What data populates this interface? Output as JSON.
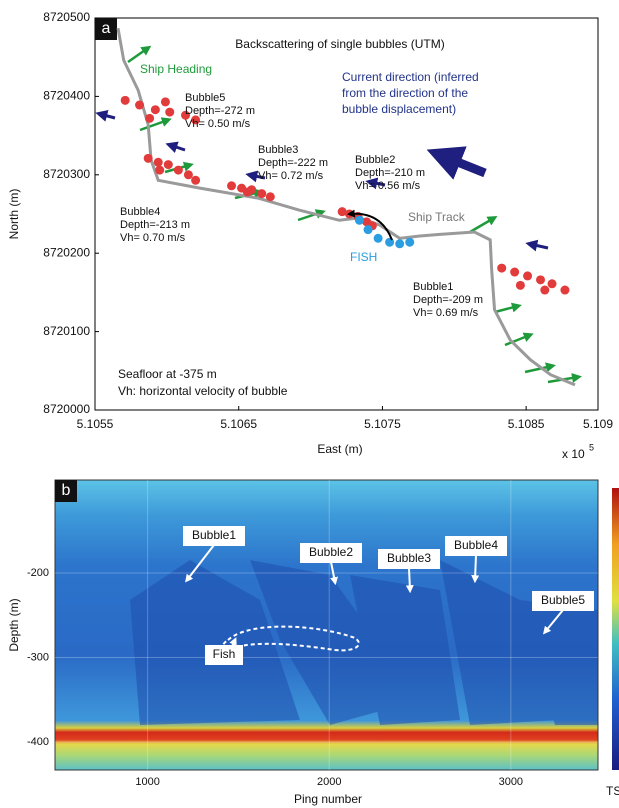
{
  "chart_data": [
    {
      "type": "map",
      "panel": "a",
      "title": "Backscattering of single bubbles (UTM)",
      "x_label": "East (m)",
      "y_label": "North (m)",
      "x_multiplier": "x 10",
      "x_multiplier_exponent": "5",
      "xlim": [
        5.1055,
        5.109
      ],
      "xticks": [
        5.1055,
        5.1065,
        5.1075,
        5.1085,
        5.109
      ],
      "ylim": [
        8720000,
        8720500
      ],
      "yticks": [
        8720000,
        8720100,
        8720200,
        8720300,
        8720400,
        8720500
      ],
      "ship_heading_label": "Ship Heading",
      "current_label": [
        "Current direction (inferred",
        "from the direction of the",
        "bubble displacement)"
      ],
      "seafloor_note": "Seafloor at -375 m",
      "vh_note": "Vh: horizontal velocity of bubble",
      "series": [
        {
          "name": "Ship Track",
          "type": "line",
          "color": "#9a9a9a",
          "x": [
            5.10566,
            5.1057,
            5.1058,
            5.10587,
            5.10589,
            5.10594,
            5.10623,
            5.10664,
            5.10692,
            5.1072,
            5.10734,
            5.10748,
            5.10762,
            5.10776,
            5.1079,
            5.10814,
            5.10825,
            5.10826,
            5.10828,
            5.10839,
            5.10853,
            5.10867,
            5.10884
          ],
          "y": [
            8720487,
            8720446,
            8720408,
            8720364,
            8720319,
            8720293,
            8720283,
            8720270,
            8720255,
            8720242,
            8720245,
            8720236,
            8720219,
            8720222,
            8720224,
            8720227,
            8720217,
            8720179,
            8720128,
            8720089,
            8720064,
            8720045,
            8720032
          ]
        },
        {
          "name": "Bubble5",
          "type": "scatter",
          "color": "#e23b3b",
          "depth_label": "Depth=-272 m",
          "velocity_label": "Vh= 0.50 m/s",
          "x": [
            5.10571,
            5.10581,
            5.10592,
            5.10602,
            5.10613,
            5.1062,
            5.10588,
            5.10599
          ],
          "y": [
            8720395,
            8720389,
            8720383,
            8720380,
            8720376,
            8720370,
            8720372,
            8720393
          ]
        },
        {
          "name": "Bubble4",
          "type": "scatter",
          "color": "#e23b3b",
          "depth_label": "Depth=-213 m",
          "velocity_label": "Vh= 0.70 m/s",
          "x": [
            5.10587,
            5.10594,
            5.10601,
            5.10608,
            5.10615,
            5.1062,
            5.10595
          ],
          "y": [
            8720321,
            8720316,
            8720313,
            8720306,
            8720300,
            8720293,
            8720306
          ]
        },
        {
          "name": "Bubble3",
          "type": "scatter",
          "color": "#e23b3b",
          "depth_label": "Depth=-222 m",
          "velocity_label": "Vh= 0.72 m/s",
          "x": [
            5.10645,
            5.10652,
            5.10659,
            5.10666,
            5.10672,
            5.10656
          ],
          "y": [
            8720286,
            8720283,
            8720281,
            8720276,
            8720272,
            8720278
          ]
        },
        {
          "name": "Bubble2",
          "type": "scatter",
          "color": "#e23b3b",
          "depth_label": "Depth=-210 m",
          "velocity_label": "Vh= 0.56 m/s",
          "x": [
            5.10722,
            5.10727,
            5.10733,
            5.10739,
            5.10743
          ],
          "y": [
            8720253,
            8720250,
            8720247,
            8720240,
            8720235
          ]
        },
        {
          "name": "Bubble1",
          "type": "scatter",
          "color": "#e23b3b",
          "depth_label": "Depth=-209 m",
          "velocity_label": "Vh= 0.69 m/s",
          "x": [
            5.10833,
            5.10842,
            5.10851,
            5.1086,
            5.10868,
            5.10877,
            5.10846,
            5.10863
          ],
          "y": [
            8720181,
            8720176,
            8720171,
            8720166,
            8720161,
            8720153,
            8720159,
            8720153
          ]
        },
        {
          "name": "FISH",
          "type": "scatter",
          "color": "#2a9ee0",
          "x": [
            5.10734,
            5.1074,
            5.10747,
            5.10755,
            5.10762,
            5.10769
          ],
          "y": [
            8720242,
            8720230,
            8720219,
            8720214,
            8720212,
            8720214
          ]
        }
      ]
    },
    {
      "type": "echogram",
      "panel": "b",
      "x_label": "Ping number",
      "y_label": "Depth (m)",
      "xlim": [
        490,
        3480
      ],
      "xticks": [
        1000,
        2000,
        3000
      ],
      "ylim": [
        -433,
        -90
      ],
      "yticks": [
        -200,
        -300,
        -400
      ],
      "grid": true,
      "labels": [
        "Bubble1",
        "Bubble2",
        "Bubble3",
        "Bubble4",
        "Bubble5",
        "Fish"
      ],
      "colorbar_label": "TS"
    }
  ]
}
